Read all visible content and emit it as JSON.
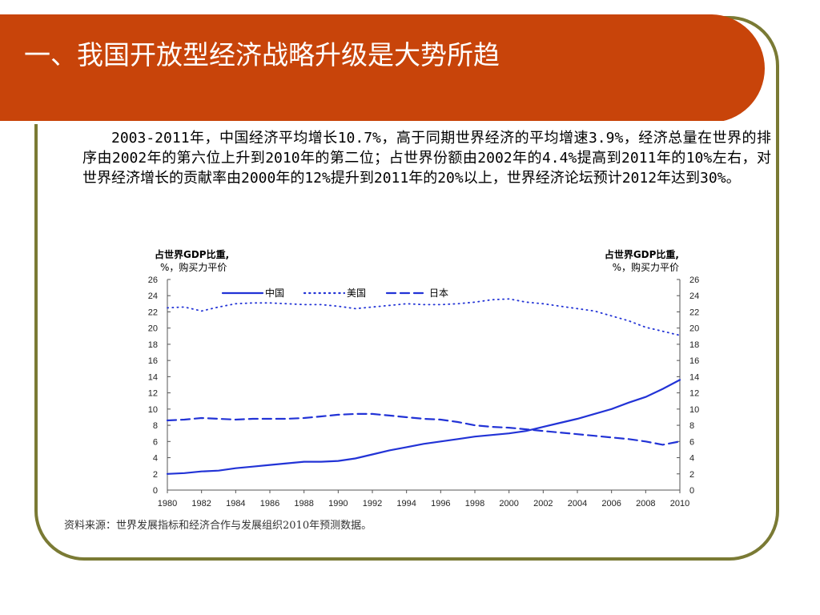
{
  "title": "一、我国开放型经济战略升级是大势所趋",
  "paragraph": "2003-2011年，中国经济平均增长10.7%，高于同期世界经济的平均增速3.9%，经济总量在世界的排序由2002年的第六位上升到2010年的第二位；占世界份额由2002年的4.4%提高到2011年的10%左右，对世界经济增长的贡献率由2000年的12%提升到2011年的20%以上，世界经济论坛预计2012年达到30%。",
  "source": "资料来源：世界发展指标和经济合作与发展组织2010年预测数据。",
  "colors": {
    "title_bar": "#c8440a",
    "frame": "#7a7a34",
    "series": "#2233d6"
  },
  "chart_data": {
    "type": "line",
    "ylabel_left": {
      "line1": "占世界GDP比重,",
      "line2": "%，购买力平价"
    },
    "ylabel_right": {
      "line1": "占世界GDP比重,",
      "line2": "%，购买力平价"
    },
    "ylim": [
      0,
      26
    ],
    "yticks": [
      0,
      2,
      4,
      6,
      8,
      10,
      12,
      14,
      16,
      18,
      20,
      22,
      24,
      26
    ],
    "xlim": [
      1980,
      2010
    ],
    "xticks": [
      1980,
      1982,
      1984,
      1986,
      1988,
      1990,
      1992,
      1994,
      1996,
      1998,
      2000,
      2002,
      2004,
      2006,
      2008,
      2010
    ],
    "x": [
      1980,
      1981,
      1982,
      1983,
      1984,
      1985,
      1986,
      1987,
      1988,
      1989,
      1990,
      1991,
      1992,
      1993,
      1994,
      1995,
      1996,
      1997,
      1998,
      1999,
      2000,
      2001,
      2002,
      2003,
      2004,
      2005,
      2006,
      2007,
      2008,
      2009,
      2010
    ],
    "grid": false,
    "legend_position": "top",
    "series": [
      {
        "name": "中国",
        "style": "solid",
        "values": [
          2.0,
          2.1,
          2.3,
          2.4,
          2.7,
          2.9,
          3.1,
          3.3,
          3.5,
          3.5,
          3.6,
          3.9,
          4.4,
          4.9,
          5.3,
          5.7,
          6.0,
          6.3,
          6.6,
          6.8,
          7.0,
          7.3,
          7.8,
          8.3,
          8.8,
          9.4,
          10.0,
          10.8,
          11.5,
          12.5,
          13.6
        ]
      },
      {
        "name": "美国",
        "style": "dotted",
        "values": [
          22.5,
          22.6,
          22.1,
          22.6,
          23.0,
          23.1,
          23.1,
          23.0,
          22.9,
          22.9,
          22.7,
          22.4,
          22.6,
          22.8,
          23.0,
          22.9,
          22.9,
          23.0,
          23.2,
          23.5,
          23.6,
          23.2,
          23.0,
          22.7,
          22.4,
          22.1,
          21.5,
          20.9,
          20.1,
          19.6,
          19.1
        ]
      },
      {
        "name": "日本",
        "style": "dashed",
        "values": [
          8.6,
          8.7,
          8.9,
          8.8,
          8.7,
          8.8,
          8.8,
          8.8,
          8.9,
          9.1,
          9.3,
          9.4,
          9.4,
          9.2,
          9.0,
          8.8,
          8.7,
          8.4,
          8.0,
          7.8,
          7.7,
          7.5,
          7.3,
          7.1,
          6.9,
          6.7,
          6.5,
          6.3,
          6.0,
          5.6,
          6.0
        ]
      }
    ]
  }
}
